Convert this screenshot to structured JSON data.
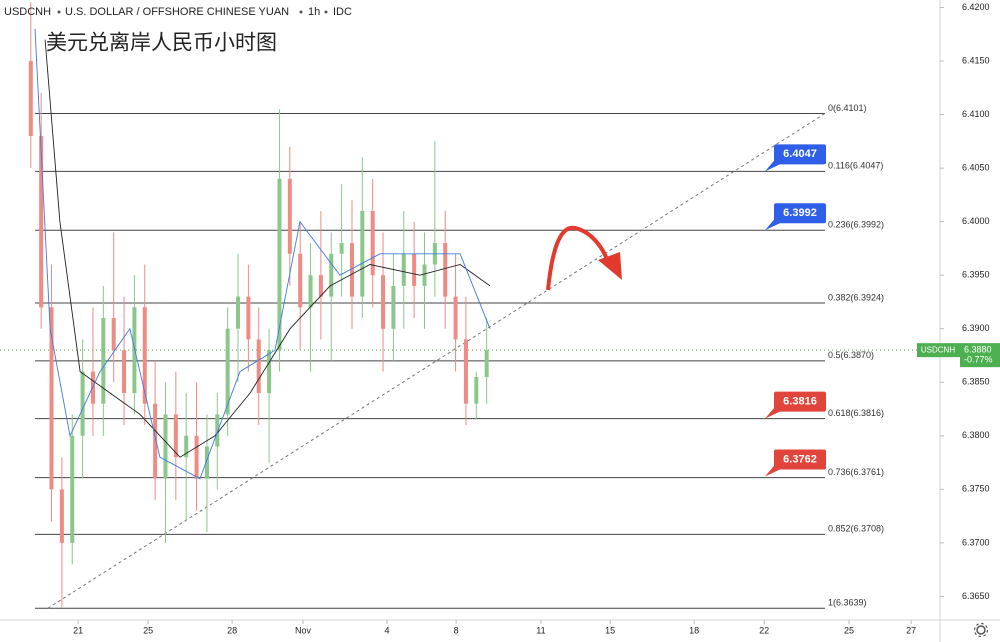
{
  "chart_data": {
    "type": "candlestick",
    "symbol": "USDCNH",
    "title": "U.S. DOLLAR / OFFSHORE CHINESE YUAN",
    "interval": "1h",
    "source": "IDC",
    "subtitle": "美元兑离岸人民币小时图",
    "up_color": "#8bc78b",
    "down_color": "#ef8a85",
    "x": [
      1.1,
      1.47,
      1.84,
      2.21,
      2.58,
      2.95,
      3.32,
      3.69,
      4.06,
      4.43,
      4.8,
      5.17,
      5.54,
      5.91,
      6.28,
      6.65,
      7.02,
      7.39,
      7.76,
      8.13,
      8.5,
      8.87,
      9.24,
      9.61,
      9.98,
      10.35,
      10.72,
      11.09,
      11.46,
      11.83,
      12.2,
      12.57,
      12.94,
      13.31,
      13.68,
      14.05,
      14.42,
      14.79,
      15.16,
      15.53,
      15.9,
      16.27,
      16.64,
      17.01,
      17.38
    ],
    "open": [
      6.415,
      6.408,
      6.392,
      6.375,
      6.37,
      6.38,
      6.386,
      6.383,
      6.391,
      6.388,
      6.384,
      6.392,
      6.383,
      6.376,
      6.382,
      6.378,
      6.38,
      6.376,
      6.379,
      6.382,
      6.39,
      6.393,
      6.389,
      6.384,
      6.388,
      6.404,
      6.397,
      6.392,
      6.395,
      6.393,
      6.397,
      6.398,
      6.393,
      6.401,
      6.395,
      6.39,
      6.394,
      6.397,
      6.394,
      6.396,
      6.398,
      6.393,
      6.389,
      6.383,
      6.3855
    ],
    "high": [
      6.4205,
      6.412,
      6.396,
      6.378,
      6.382,
      6.389,
      6.392,
      6.394,
      6.399,
      6.393,
      6.395,
      6.396,
      6.387,
      6.385,
      6.386,
      6.384,
      6.385,
      6.382,
      6.384,
      6.392,
      6.397,
      6.396,
      6.392,
      6.39,
      6.4105,
      6.407,
      6.4,
      6.398,
      6.401,
      6.399,
      6.4035,
      6.402,
      6.406,
      6.404,
      6.399,
      6.397,
      6.401,
      6.4,
      6.399,
      6.4075,
      6.401,
      6.397,
      6.393,
      6.386,
      6.391
    ],
    "low": [
      6.405,
      6.39,
      6.372,
      6.364,
      6.368,
      6.376,
      6.38,
      6.38,
      6.385,
      6.381,
      6.382,
      6.381,
      6.374,
      6.37,
      6.374,
      6.372,
      6.373,
      6.371,
      6.375,
      6.38,
      6.385,
      6.386,
      6.381,
      6.3775,
      6.386,
      6.394,
      6.388,
      6.386,
      6.389,
      6.387,
      6.393,
      6.39,
      6.391,
      6.392,
      6.386,
      6.387,
      6.39,
      6.391,
      6.39,
      6.393,
      6.39,
      6.386,
      6.381,
      6.3815,
      6.383
    ],
    "close": [
      6.408,
      6.392,
      6.375,
      6.37,
      6.38,
      6.386,
      6.383,
      6.391,
      6.388,
      6.384,
      6.392,
      6.383,
      6.376,
      6.382,
      6.378,
      6.38,
      6.376,
      6.379,
      6.382,
      6.39,
      6.393,
      6.389,
      6.384,
      6.388,
      6.404,
      6.397,
      6.392,
      6.395,
      6.393,
      6.397,
      6.398,
      6.393,
      6.401,
      6.395,
      6.39,
      6.394,
      6.397,
      6.394,
      6.396,
      6.398,
      6.393,
      6.389,
      6.383,
      6.3855,
      6.388
    ],
    "moving_averages": [
      {
        "color": "#222222",
        "x": [
          1.61,
          2.14,
          2.86,
          3.93,
          5,
          6.43,
          7.68,
          8.93,
          10.36,
          11.79,
          13.21,
          15,
          16.43,
          17.5
        ],
        "values": [
          6.417,
          6.4,
          6.386,
          6.384,
          6.382,
          6.378,
          6.38,
          6.384,
          6.39,
          6.394,
          6.396,
          6.395,
          6.396,
          6.394
        ]
      },
      {
        "color": "#3d7be0",
        "x": [
          1.25,
          1.79,
          2.5,
          3.57,
          4.64,
          5.71,
          7.14,
          8.57,
          9.82,
          10.71,
          12.14,
          13.57,
          15,
          16.43,
          17.5
        ],
        "values": [
          6.418,
          6.39,
          6.38,
          6.386,
          6.39,
          6.378,
          6.376,
          6.386,
          6.388,
          6.4,
          6.395,
          6.397,
          6.397,
          6.397,
          6.39
        ]
      }
    ],
    "fib_levels": [
      {
        "value": 6.4101,
        "label": "0(6.4101)"
      },
      {
        "value": 6.4047,
        "label": "0.116(6.4047)"
      },
      {
        "value": 6.3992,
        "label": "0.236(6.3992)"
      },
      {
        "value": 6.3924,
        "label": "0.382(6.3924)"
      },
      {
        "value": 6.387,
        "label": "0.5(6.3870)"
      },
      {
        "value": 6.3816,
        "label": "0.618(6.3816)"
      },
      {
        "value": 6.3761,
        "label": "0.736(6.3761)"
      },
      {
        "value": 6.3708,
        "label": "0.852(6.3708)"
      },
      {
        "value": 6.3639,
        "label": "1(6.3639)"
      }
    ],
    "trendline": {
      "x": [
        1.71,
        29.46
      ],
      "y": [
        6.3639,
        6.4101
      ]
    },
    "callouts": [
      {
        "value": 6.4047,
        "color": "#2f5fe8"
      },
      {
        "value": 6.3992,
        "color": "#2f5fe8"
      },
      {
        "value": 6.3816,
        "color": "#e0443a"
      },
      {
        "value": 6.3762,
        "color": "#e0443a"
      }
    ],
    "last_price": {
      "value": 6.388,
      "label": "6.3880"
    },
    "change_label": "-0.77%",
    "price_tag_color": "#4caf50",
    "xlim": [
      0,
      33.57
    ],
    "ylim": [
      6.3628,
      6.4207
    ],
    "xticks": [
      {
        "value": 2.79,
        "label": "21"
      },
      {
        "value": 5.29,
        "label": "25"
      },
      {
        "value": 8.29,
        "label": "28"
      },
      {
        "value": 10.82,
        "label": "Nov"
      },
      {
        "value": 13.82,
        "label": "4"
      },
      {
        "value": 16.29,
        "label": "8"
      },
      {
        "value": 19.32,
        "label": "11"
      },
      {
        "value": 21.79,
        "label": "15"
      },
      {
        "value": 24.79,
        "label": "18"
      },
      {
        "value": 27.29,
        "label": "22"
      },
      {
        "value": 30.32,
        "label": "25"
      },
      {
        "value": 32.54,
        "label": "27"
      }
    ],
    "yticks": [
      {
        "value": 6.42,
        "label": "6.4200"
      },
      {
        "value": 6.415,
        "label": "6.4150"
      },
      {
        "value": 6.41,
        "label": "6.4100"
      },
      {
        "value": 6.405,
        "label": "6.4050"
      },
      {
        "value": 6.4,
        "label": "6.4000"
      },
      {
        "value": 6.395,
        "label": "6.3950"
      },
      {
        "value": 6.39,
        "label": "6.3900"
      },
      {
        "value": 6.385,
        "label": "6.3850"
      },
      {
        "value": 6.38,
        "label": "6.3800"
      },
      {
        "value": 6.375,
        "label": "6.3750"
      },
      {
        "value": 6.37,
        "label": "6.3700"
      },
      {
        "value": 6.365,
        "label": "6.3650"
      }
    ]
  }
}
